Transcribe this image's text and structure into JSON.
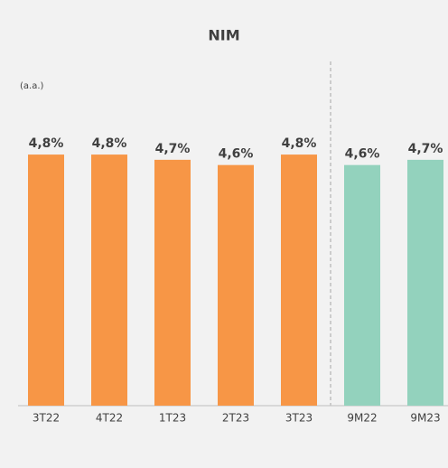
{
  "chart_data": {
    "type": "bar",
    "title": "NIM",
    "subtitle": "(a.a.)",
    "categories": [
      "3T22",
      "4T22",
      "1T23",
      "2T23",
      "3T23",
      "9M22",
      "9M23"
    ],
    "values": [
      4.8,
      4.8,
      4.7,
      4.6,
      4.8,
      4.6,
      4.7
    ],
    "value_labels": [
      "4,8%",
      "4,8%",
      "4,7%",
      "4,6%",
      "4,8%",
      "4,6%",
      "4,7%"
    ],
    "colors": [
      "#f79646",
      "#f79646",
      "#f79646",
      "#f79646",
      "#f79646",
      "#93d2bd",
      "#93d2bd"
    ]
  }
}
